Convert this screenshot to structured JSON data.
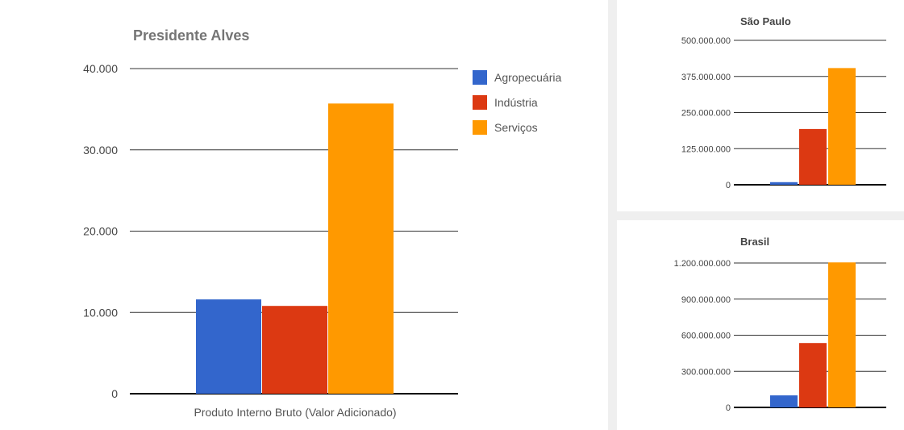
{
  "colors": {
    "agropecuaria": "#3366cc",
    "industria": "#dc3912",
    "servicos": "#ff9900",
    "gridline": "#333333",
    "axis": "#000000"
  },
  "chart_data": [
    {
      "type": "bar",
      "title": "Presidente Alves",
      "categories": [
        "Produto Interno Bruto (Valor Adicionado)"
      ],
      "series": [
        {
          "name": "Agropecuária",
          "values": [
            11600
          ]
        },
        {
          "name": "Indústria",
          "values": [
            10800
          ]
        },
        {
          "name": "Serviços",
          "values": [
            35700
          ]
        }
      ],
      "ylim": [
        0,
        40000
      ],
      "yticks": [
        "0",
        "10.000",
        "20.000",
        "30.000",
        "40.000"
      ],
      "legend": "right",
      "grid": true
    },
    {
      "type": "bar",
      "title": "São Paulo",
      "categories": [
        ""
      ],
      "series": [
        {
          "name": "Agropecuária",
          "values": [
            9000000
          ]
        },
        {
          "name": "Indústria",
          "values": [
            193000000
          ]
        },
        {
          "name": "Serviços",
          "values": [
            404000000
          ]
        }
      ],
      "ylim": [
        0,
        500000000
      ],
      "yticks": [
        "0",
        "125.000.000",
        "250.000.000",
        "375.000.000",
        "500.000.000"
      ],
      "legend": "none",
      "grid": true
    },
    {
      "type": "bar",
      "title": "Brasil",
      "categories": [
        ""
      ],
      "series": [
        {
          "name": "Agropecuária",
          "values": [
            100000000
          ]
        },
        {
          "name": "Indústria",
          "values": [
            535000000
          ]
        },
        {
          "name": "Serviços",
          "values": [
            1205000000
          ]
        }
      ],
      "ylim": [
        0,
        1200000000
      ],
      "yticks": [
        "0",
        "300.000.000",
        "600.000.000",
        "900.000.000",
        "1.200.000.000"
      ],
      "legend": "none",
      "grid": true
    }
  ]
}
